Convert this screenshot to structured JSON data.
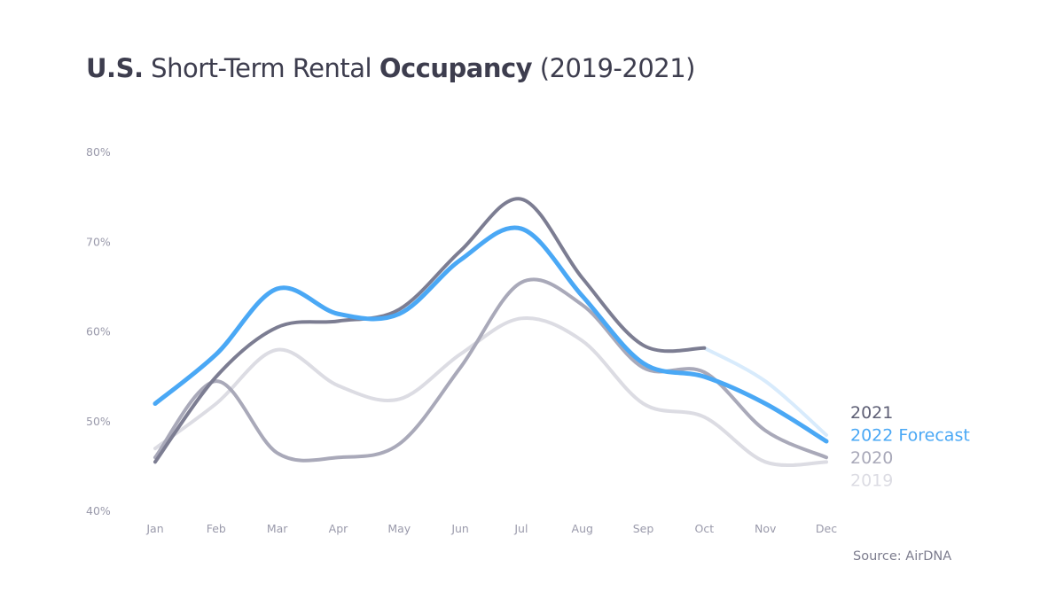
{
  "title": {
    "part1_bold": "U.S.",
    "part2": " Short-Term Rental ",
    "part3_bold": "Occupancy",
    "part4": " (2019-2021)"
  },
  "source": "Source: AirDNA",
  "chart_data": {
    "type": "line",
    "title": "U.S. Short-Term Rental Occupancy (2019-2021)",
    "categories": [
      "Jan",
      "Feb",
      "Mar",
      "Apr",
      "May",
      "Jun",
      "Jul",
      "Aug",
      "Sep",
      "Oct",
      "Nov",
      "Dec"
    ],
    "ylim": [
      40,
      80
    ],
    "yticks": [
      "40%",
      "50%",
      "60%",
      "70%",
      "80%"
    ],
    "ytick_values": [
      40,
      50,
      60,
      70,
      80
    ],
    "grid": false,
    "legend_placement": "right",
    "series": [
      {
        "name": "2019",
        "color": "#dcdce3",
        "values": [
          47,
          52,
          58,
          54,
          52.5,
          57.5,
          61.5,
          59,
          52,
          50.5,
          45.5,
          45.5
        ]
      },
      {
        "name": "2020",
        "color": "#a9a9b9",
        "values": [
          46,
          54.5,
          46.5,
          46,
          47.5,
          56,
          65.5,
          63,
          56,
          55.5,
          49,
          46
        ]
      },
      {
        "name": "2021",
        "color": "#7c7d92",
        "values": [
          45.5,
          55,
          60.5,
          61.2,
          62.5,
          69,
          74.8,
          66,
          58.5,
          58.2,
          null,
          null
        ],
        "faded_continuation": {
          "color": "#d8ebfc",
          "values": [
            null,
            null,
            null,
            null,
            null,
            null,
            null,
            null,
            null,
            58.2,
            54.5,
            48.5
          ]
        }
      },
      {
        "name": "2022 Forecast",
        "color": "#4aa8f5",
        "values": [
          52,
          57.5,
          64.8,
          62,
          62,
          68,
          71.5,
          64,
          56.5,
          55,
          52,
          47.8
        ]
      }
    ],
    "legend_order": [
      "2021",
      "2022 Forecast",
      "2020",
      "2019"
    ]
  }
}
